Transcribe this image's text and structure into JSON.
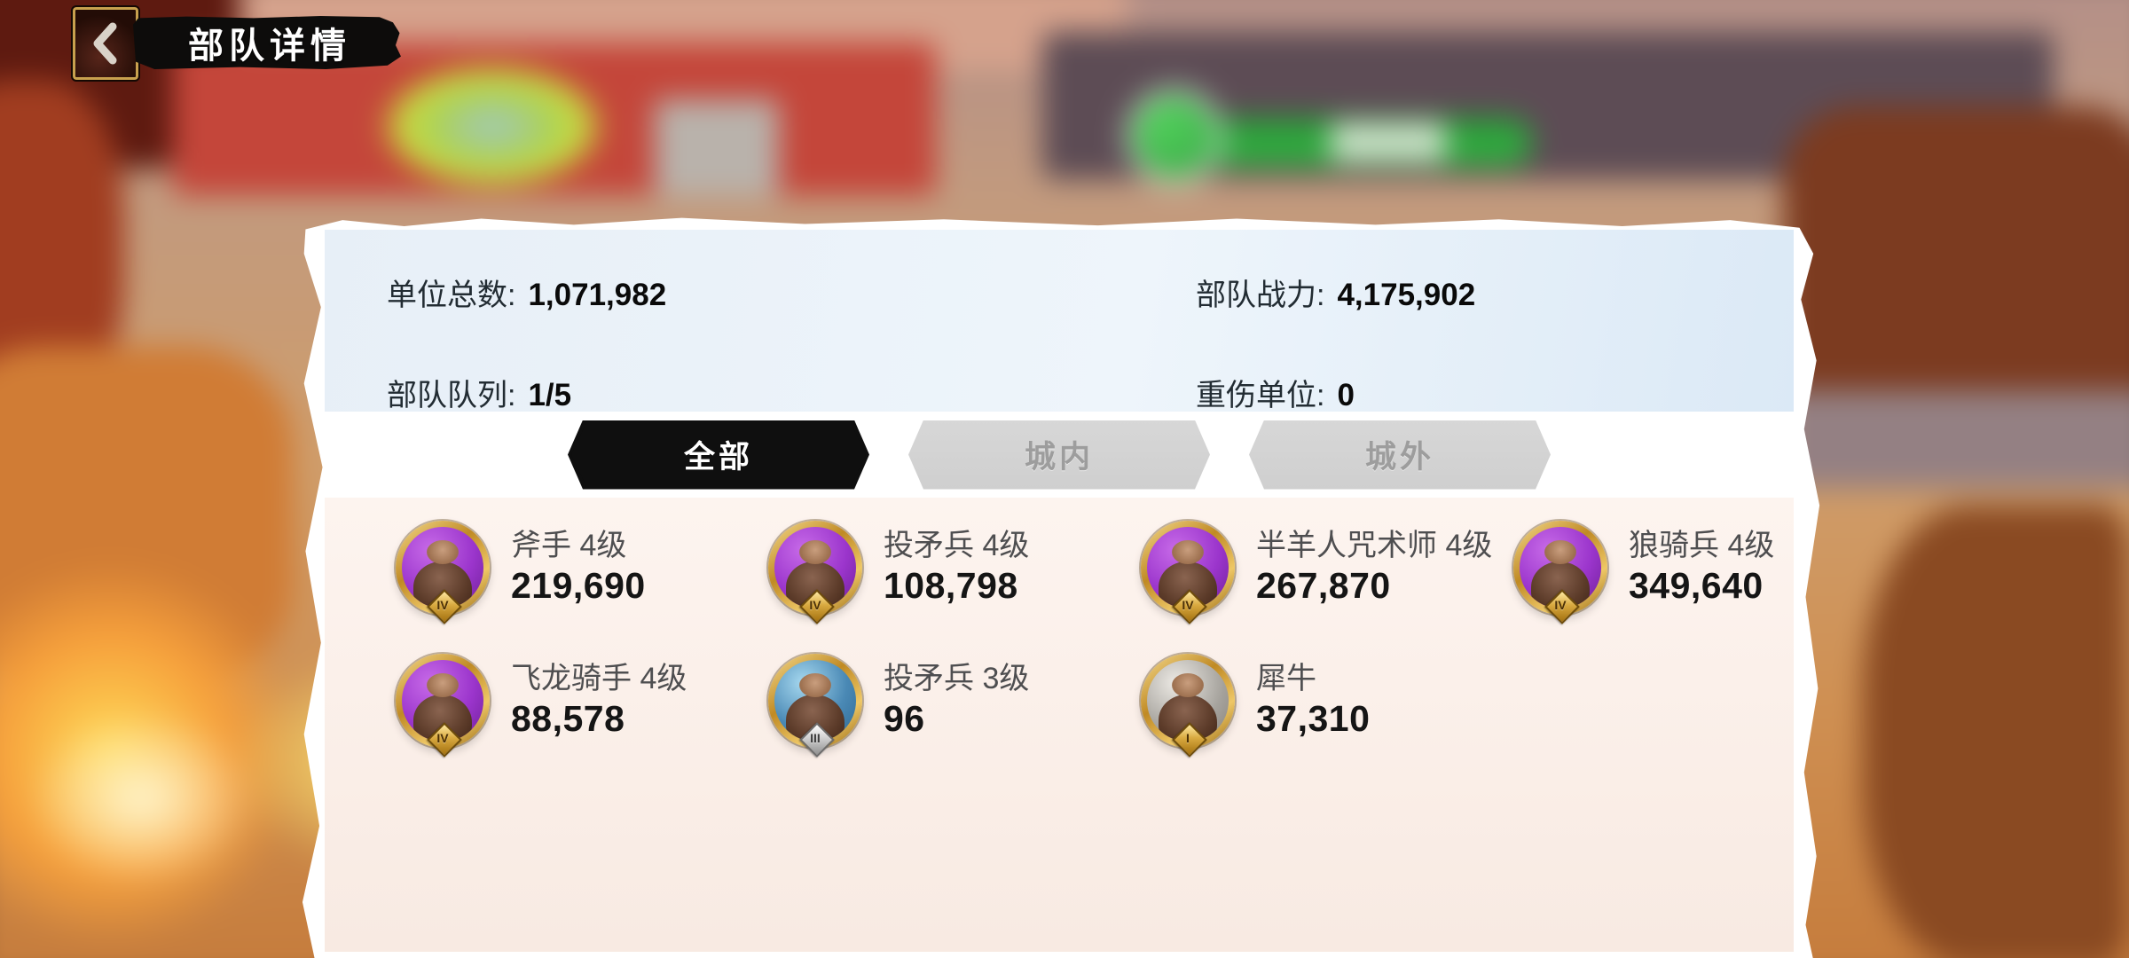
{
  "header": {
    "title": "部队详情"
  },
  "stats": {
    "left": [
      {
        "label": "单位总数:",
        "value": "1,071,982"
      },
      {
        "label": "部队队列:",
        "value": "1/5"
      }
    ],
    "right": [
      {
        "label": "部队战力:",
        "value": "4,175,902"
      },
      {
        "label": "重伤单位:",
        "value": "0"
      }
    ]
  },
  "tabs": [
    {
      "label": "全部",
      "selected": true
    },
    {
      "label": "城内",
      "selected": false
    },
    {
      "label": "城外",
      "selected": false
    }
  ],
  "units": [
    {
      "name": "斧手 4级",
      "count": "219,690",
      "tier_badge": "IV",
      "tier": "purple"
    },
    {
      "name": "投矛兵 4级",
      "count": "108,798",
      "tier_badge": "IV",
      "tier": "purple"
    },
    {
      "name": "半羊人咒术师 4级",
      "count": "267,870",
      "tier_badge": "IV",
      "tier": "purple"
    },
    {
      "name": "狼骑兵 4级",
      "count": "349,640",
      "tier_badge": "IV",
      "tier": "purple"
    },
    {
      "name": "飞龙骑手 4级",
      "count": "88,578",
      "tier_badge": "IV",
      "tier": "purple"
    },
    {
      "name": "投矛兵 3级",
      "count": "96",
      "tier_badge": "III",
      "tier": "blue"
    },
    {
      "name": "犀牛",
      "count": "37,310",
      "tier_badge": "I",
      "tier": "gray"
    }
  ],
  "colors": {
    "tab_selected_bg": "#0f0f0f",
    "tab_unselected_text": "#9d9d9d",
    "stats_bg_start": "#e7eff7",
    "stats_bg_end": "#dbe9f6",
    "units_bg": "#fbf0ea",
    "gold": "#d8a93f",
    "tier_purple": "#9b35cc",
    "tier_blue": "#4a89b5",
    "tier_gray": "#a5a29c",
    "label_text": "#222c33",
    "value_text": "#0a0a0a"
  }
}
